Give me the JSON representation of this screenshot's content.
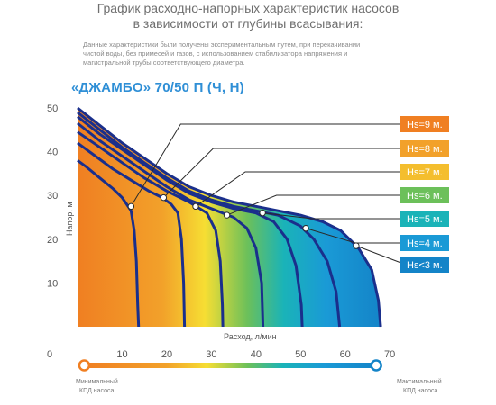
{
  "header": {
    "title_line1": "График расходно-напорных характеристик насосов",
    "title_line2": "в зависимости от глубины всасывания:",
    "desc_line1": "Данные характеристики были получены экспериментальным путем, при перекачивании",
    "desc_line2": "чистой воды, без примесей и газов, с использованием стабилизатора напряжения и",
    "desc_line3": "магистральной трубы соответствующего диаметра."
  },
  "model_title": "«ДЖАМБО» 70/50 П (Ч, Н)",
  "colors": {
    "curve": "#1a2f8c",
    "gradient": [
      "#f07f22",
      "#f2a12a",
      "#f6de33",
      "#6cc05a",
      "#1ab3b8",
      "#1a9ad6",
      "#1484c8"
    ],
    "label_text": "#ffffff",
    "axis_text": "#555555"
  },
  "chart_data": {
    "type": "line",
    "xlabel": "Расход, л/мин",
    "ylabel": "Напор, м",
    "xlim": [
      0,
      70
    ],
    "ylim": [
      0,
      50
    ],
    "x_ticks": [
      "10",
      "20",
      "30",
      "40",
      "50",
      "60",
      "70"
    ],
    "y_ticks": [
      "10",
      "20",
      "30",
      "40",
      "50"
    ],
    "origin_label": "0",
    "series": [
      {
        "name": "Hs=9 м.",
        "label_color": "#f07f22",
        "marker": [
          12,
          27.5
        ],
        "points": [
          [
            0,
            38
          ],
          [
            2,
            36.5
          ],
          [
            5,
            34
          ],
          [
            8,
            31.5
          ],
          [
            10,
            29.5
          ],
          [
            11,
            28
          ],
          [
            12,
            26.5
          ],
          [
            12.7,
            22
          ],
          [
            13.2,
            15
          ],
          [
            13.5,
            5
          ],
          [
            13.7,
            0
          ]
        ]
      },
      {
        "name": "Hs=8 м.",
        "label_color": "#f2a12a",
        "marker": [
          19.3,
          29.5
        ],
        "points": [
          [
            0,
            42
          ],
          [
            4,
            39
          ],
          [
            8,
            36
          ],
          [
            12,
            33.5
          ],
          [
            16,
            31
          ],
          [
            19,
            29.5
          ],
          [
            21,
            28
          ],
          [
            22.5,
            26
          ],
          [
            23.3,
            20
          ],
          [
            23.8,
            10
          ],
          [
            24,
            0
          ]
        ]
      },
      {
        "name": "Hs=7 м.",
        "label_color": "#f4be2e",
        "marker": [
          26.5,
          27.5
        ],
        "points": [
          [
            0,
            44.5
          ],
          [
            5,
            41
          ],
          [
            10,
            37.5
          ],
          [
            15,
            34
          ],
          [
            20,
            31
          ],
          [
            25,
            28.5
          ],
          [
            29,
            26
          ],
          [
            31,
            22
          ],
          [
            32,
            15
          ],
          [
            32.5,
            5
          ],
          [
            32.6,
            0
          ]
        ]
      },
      {
        "name": "Hs=6 м.",
        "label_color": "#6cc05a",
        "marker": [
          33.5,
          25.5
        ],
        "points": [
          [
            0,
            46.5
          ],
          [
            5,
            42.5
          ],
          [
            10,
            39
          ],
          [
            15,
            35.5
          ],
          [
            20,
            32
          ],
          [
            25,
            29
          ],
          [
            30,
            27
          ],
          [
            35,
            25
          ],
          [
            38,
            22.5
          ],
          [
            40,
            18
          ],
          [
            41.3,
            10
          ],
          [
            41.6,
            0
          ]
        ]
      },
      {
        "name": "Hs=5 м.",
        "label_color": "#1ab3b8",
        "marker": [
          41.5,
          26
        ],
        "points": [
          [
            0,
            48
          ],
          [
            5,
            44
          ],
          [
            10,
            40.5
          ],
          [
            15,
            37
          ],
          [
            20,
            33.5
          ],
          [
            25,
            30.5
          ],
          [
            30,
            28.5
          ],
          [
            35,
            27
          ],
          [
            40,
            26
          ],
          [
            44,
            24
          ],
          [
            47,
            20
          ],
          [
            49,
            14
          ],
          [
            50.2,
            5
          ],
          [
            50.4,
            0
          ]
        ]
      },
      {
        "name": "Hs=4 м.",
        "label_color": "#1a9ad6",
        "marker": [
          51.2,
          22.5
        ],
        "points": [
          [
            0,
            49
          ],
          [
            5,
            45
          ],
          [
            10,
            41
          ],
          [
            15,
            37.5
          ],
          [
            20,
            34
          ],
          [
            25,
            31
          ],
          [
            30,
            29
          ],
          [
            35,
            27.5
          ],
          [
            40,
            26.5
          ],
          [
            45,
            25.5
          ],
          [
            50,
            23
          ],
          [
            53,
            20
          ],
          [
            56,
            15
          ],
          [
            58,
            8
          ],
          [
            58.8,
            0
          ]
        ]
      },
      {
        "name": "Hs<3 м.",
        "label_color": "#1484c8",
        "marker": [
          62.5,
          18.5
        ],
        "points": [
          [
            0,
            50
          ],
          [
            5,
            46
          ],
          [
            10,
            42
          ],
          [
            15,
            38.5
          ],
          [
            20,
            35
          ],
          [
            25,
            32
          ],
          [
            30,
            30
          ],
          [
            35,
            28.5
          ],
          [
            40,
            27.5
          ],
          [
            45,
            26.5
          ],
          [
            50,
            25.5
          ],
          [
            55,
            24
          ],
          [
            59,
            22
          ],
          [
            63,
            18
          ],
          [
            66,
            13
          ],
          [
            67.5,
            6
          ],
          [
            68,
            0
          ]
        ]
      }
    ],
    "efficiency_bar": {
      "min_label_line1": "Минимальный",
      "min_label_line2": "КПД насоса",
      "max_label_line1": "Максимальный",
      "max_label_line2": "КПД насоса"
    },
    "grid": false,
    "legend": "right"
  }
}
